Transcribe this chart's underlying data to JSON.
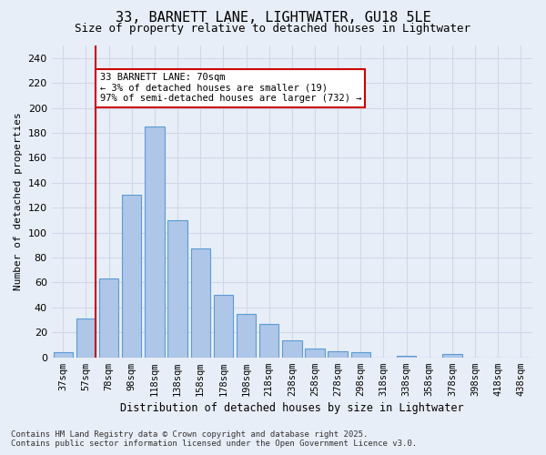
{
  "title_line1": "33, BARNETT LANE, LIGHTWATER, GU18 5LE",
  "title_line2": "Size of property relative to detached houses in Lightwater",
  "xlabel": "Distribution of detached houses by size in Lightwater",
  "ylabel": "Number of detached properties",
  "categories": [
    "37sqm",
    "57sqm",
    "78sqm",
    "98sqm",
    "118sqm",
    "138sqm",
    "158sqm",
    "178sqm",
    "198sqm",
    "218sqm",
    "238sqm",
    "258sqm",
    "278sqm",
    "298sqm",
    "318sqm",
    "338sqm",
    "358sqm",
    "378sqm",
    "398sqm",
    "418sqm",
    "438sqm"
  ],
  "bar_values": [
    4,
    31,
    63,
    130,
    185,
    110,
    87,
    50,
    35,
    27,
    14,
    7,
    5,
    4,
    0,
    1,
    0,
    3,
    0,
    0,
    0
  ],
  "bar_color": "#aec6e8",
  "bar_edge_color": "#5b9bd5",
  "vline_x": 1,
  "vline_color": "#cc0000",
  "annotation_text": "33 BARNETT LANE: 70sqm\n← 3% of detached houses are smaller (19)\n97% of semi-detached houses are larger (732) →",
  "annotation_box_color": "#ffffff",
  "annotation_box_edge": "#cc0000",
  "ylim": [
    0,
    250
  ],
  "yticks": [
    0,
    20,
    40,
    60,
    80,
    100,
    120,
    140,
    160,
    180,
    200,
    220,
    240
  ],
  "grid_color": "#d0d8e8",
  "background_color": "#e8eef8",
  "footer_line1": "Contains HM Land Registry data © Crown copyright and database right 2025.",
  "footer_line2": "Contains public sector information licensed under the Open Government Licence v3.0."
}
